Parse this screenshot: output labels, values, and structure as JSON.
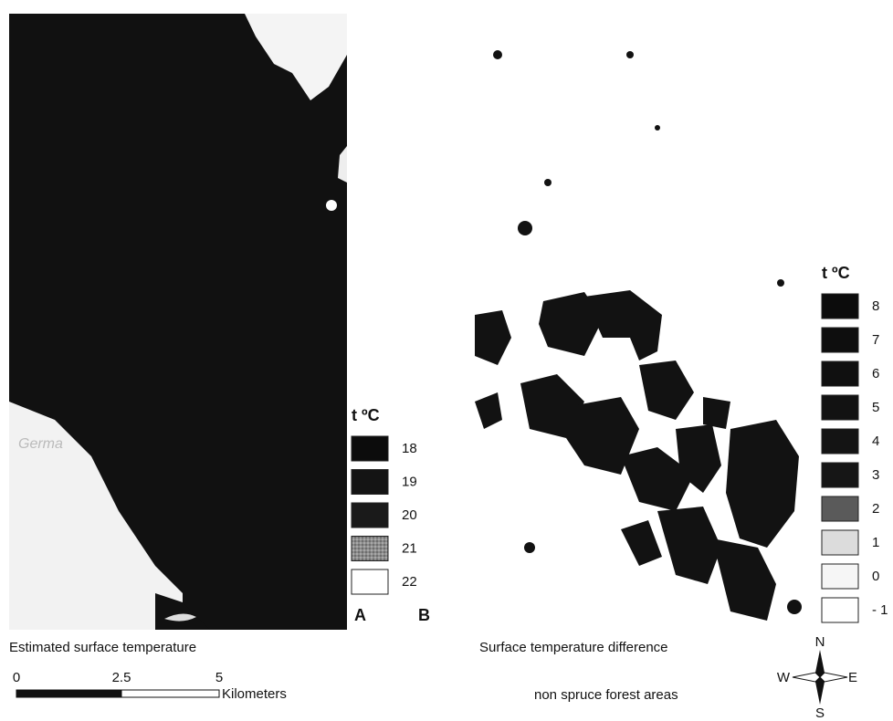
{
  "panel_a": {
    "label": "A",
    "caption": "Estimated surface temperature",
    "place_label": "Germa",
    "legend": {
      "title": "t ºC",
      "items": [
        "18",
        "19",
        "20",
        "21",
        "22"
      ]
    }
  },
  "panel_b": {
    "label": "B",
    "caption": "Surface temperature difference",
    "note": "non spruce forest areas",
    "legend": {
      "title": "t ºC",
      "items": [
        "8",
        "7",
        "6",
        "5",
        "4",
        "3",
        "2",
        "1",
        "0",
        "- 1"
      ]
    }
  },
  "scale_bar": {
    "ticks": [
      "0",
      "2.5",
      "5"
    ],
    "unit": "Kilometers"
  },
  "compass": {
    "north": "N",
    "south": "S",
    "east": "E",
    "west": "W"
  }
}
